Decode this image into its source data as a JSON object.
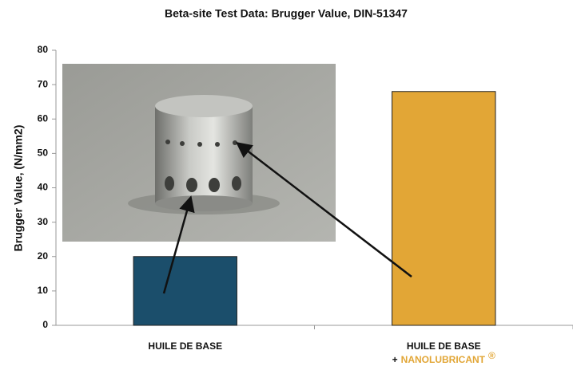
{
  "chart_data": {
    "type": "bar",
    "title": "Beta-site Test Data: Brugger Value, DIN-51347",
    "y_label": "Brugger Value, (N/mm2)",
    "categories": [
      "HUILE DE BASE",
      "HUILE DE BASE"
    ],
    "second_line": {
      "prefix": "+",
      "text": "NANOLUBRICANT",
      "mark": "®"
    },
    "values": [
      20,
      68
    ],
    "colors": [
      "#1b4e6b",
      "#e2a636"
    ],
    "ylim": [
      0,
      80
    ],
    "yticks": [
      0,
      10,
      20,
      30,
      40,
      50,
      60,
      70,
      80
    ],
    "grid": false
  }
}
